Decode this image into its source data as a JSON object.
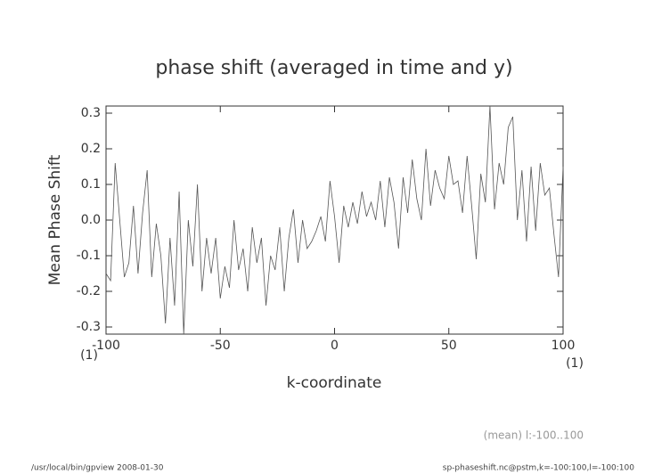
{
  "chart_data": {
    "type": "line",
    "title": "phase shift (averaged in time and y)",
    "x_label": "k-coordinate",
    "y_label": "Mean Phase Shift",
    "x_unit_left": "(1)",
    "x_unit_right": "(1)",
    "annotation": "(mean) l:-100..100",
    "footer_left": "/usr/local/bin/gpview   2008-01-30",
    "footer_right": "sp-phaseshift.nc@pstm,k=-100:100,l=-100:100",
    "xlim": [
      -100,
      100
    ],
    "xticks": [
      -100,
      -50,
      0,
      50,
      100
    ],
    "ylim": [
      -0.32,
      0.32
    ],
    "yticks": [
      -0.3,
      -0.2,
      -0.1,
      {
        "value": 0,
        "label": "0.0"
      },
      0.1,
      0.2,
      0.3
    ],
    "x": [
      -100,
      -98,
      -96,
      -94,
      -92,
      -90,
      -88,
      -86,
      -84,
      -82,
      -80,
      -78,
      -76,
      -74,
      -72,
      -70,
      -68,
      -66,
      -64,
      -62,
      -60,
      -58,
      -56,
      -54,
      -52,
      -50,
      -48,
      -46,
      -44,
      -42,
      -40,
      -38,
      -36,
      -34,
      -32,
      -30,
      -28,
      -26,
      -24,
      -22,
      -20,
      -18,
      -16,
      -14,
      -12,
      -10,
      -8,
      -6,
      -4,
      -2,
      0,
      2,
      4,
      6,
      8,
      10,
      12,
      14,
      16,
      18,
      20,
      22,
      24,
      26,
      28,
      30,
      32,
      34,
      36,
      38,
      40,
      42,
      44,
      46,
      48,
      50,
      52,
      54,
      56,
      58,
      60,
      62,
      64,
      66,
      68,
      70,
      72,
      74,
      76,
      78,
      80,
      82,
      84,
      86,
      88,
      90,
      92,
      94,
      96,
      98,
      100
    ],
    "series": [
      {
        "color": "#555555",
        "values": [
          -0.15,
          -0.17,
          0.16,
          0.0,
          -0.16,
          -0.12,
          0.04,
          -0.15,
          0.02,
          0.14,
          -0.16,
          -0.01,
          -0.1,
          -0.29,
          -0.05,
          -0.24,
          0.08,
          -0.32,
          0.0,
          -0.13,
          0.1,
          -0.2,
          -0.05,
          -0.15,
          -0.05,
          -0.22,
          -0.13,
          -0.19,
          0.0,
          -0.14,
          -0.08,
          -0.2,
          -0.02,
          -0.12,
          -0.05,
          -0.24,
          -0.1,
          -0.14,
          -0.02,
          -0.2,
          -0.05,
          0.03,
          -0.12,
          0.0,
          -0.08,
          -0.06,
          -0.03,
          0.01,
          -0.06,
          0.11,
          0.01,
          -0.12,
          0.04,
          -0.02,
          0.05,
          -0.01,
          0.08,
          0.01,
          0.05,
          0.0,
          0.11,
          -0.02,
          0.12,
          0.05,
          -0.08,
          0.12,
          0.02,
          0.17,
          0.06,
          0.0,
          0.2,
          0.04,
          0.14,
          0.09,
          0.06,
          0.18,
          0.1,
          0.11,
          0.02,
          0.18,
          0.04,
          -0.11,
          0.13,
          0.05,
          0.32,
          0.03,
          0.16,
          0.1,
          0.26,
          0.29,
          0.0,
          0.14,
          -0.06,
          0.15,
          -0.03,
          0.16,
          0.07,
          0.09,
          -0.04,
          -0.16,
          0.15
        ]
      }
    ]
  }
}
